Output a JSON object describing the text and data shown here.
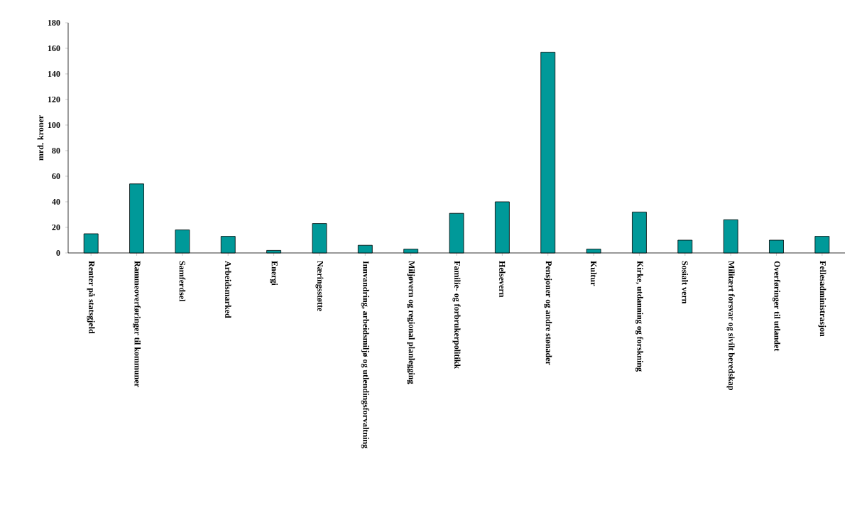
{
  "chart_data": {
    "type": "bar",
    "ylabel": "mrd. kroner",
    "color": "#009999",
    "categories": [
      "Renter på statsgjeld",
      "Rammeoverføringer til kommuner",
      "Samferdsel",
      "Arbeidsmarked",
      "Energi",
      "Næringsstøtte",
      "Innvandring, arbeidsmiljø og utlendingsforvaltning",
      "Miljøvern og regional planlegging",
      "Familie- og forbrukerpolitikk",
      "Helsevern",
      "Pensjoner og andre stønader",
      "Kultur",
      "Kirke, utdanning og forskning",
      "Sosialt vern",
      "Militært forsvar og sivilt beredskap",
      "Overføringer til utlandet",
      "Fellesadministrasjon"
    ],
    "values": [
      15,
      54,
      18,
      13,
      2,
      23,
      6,
      3,
      31,
      40,
      157,
      3,
      32,
      10,
      26,
      10,
      13
    ],
    "ylim": [
      0,
      180
    ],
    "yticks": [
      0,
      20,
      40,
      60,
      80,
      100,
      120,
      140,
      160,
      180
    ],
    "grid": false
  }
}
